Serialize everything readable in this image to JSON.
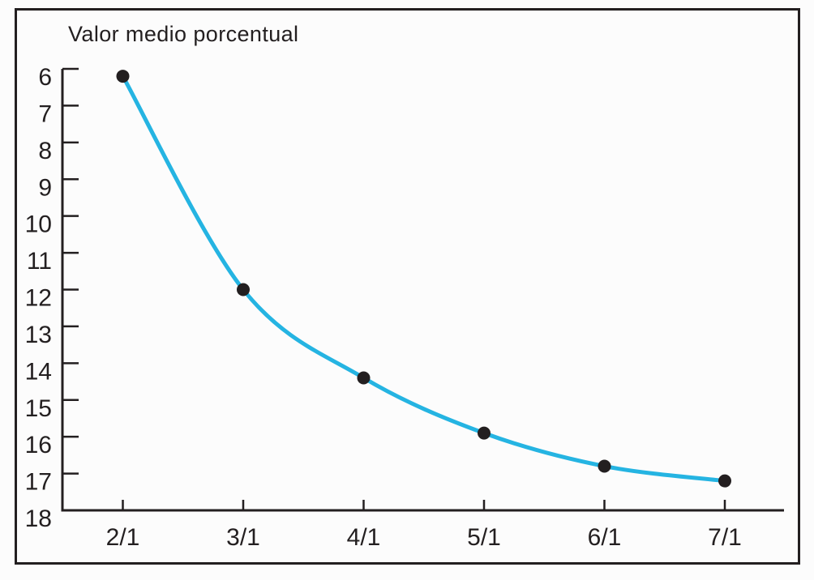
{
  "chart": {
    "title": "Valor medio porcentual"
  },
  "chart_data": {
    "type": "line",
    "title": "Valor medio porcentual",
    "categories": [
      "2/1",
      "3/1",
      "4/1",
      "5/1",
      "6/1",
      "7/1"
    ],
    "values": [
      6.2,
      12,
      14.4,
      15.9,
      16.8,
      17.2
    ],
    "xlabel": "",
    "ylabel": "",
    "y_ticks": [
      6,
      7,
      8,
      9,
      10,
      11,
      12,
      13,
      14,
      15,
      16,
      17,
      18
    ],
    "ylim": [
      6,
      18
    ],
    "y_axis_inverted": true,
    "grid": false,
    "legend": false,
    "line_color": "#25b4e2",
    "marker_color": "#231f20",
    "axis_color": "#231f20",
    "frame_color": "#231f20"
  }
}
